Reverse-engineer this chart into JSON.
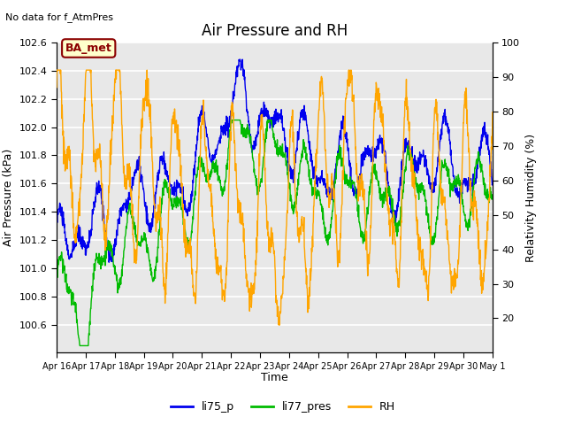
{
  "title": "Air Pressure and RH",
  "no_data_text": "No data for f_AtmPres",
  "ba_met_label": "BA_met",
  "ylabel_left": "Air Pressure (kPa)",
  "ylabel_right": "Relativity Humidity (%)",
  "xlabel": "Time",
  "ylim_left": [
    100.4,
    102.6
  ],
  "ylim_right": [
    10,
    100
  ],
  "yticks_left": [
    100.6,
    100.8,
    101.0,
    101.2,
    101.4,
    101.6,
    101.8,
    102.0,
    102.2,
    102.4,
    102.6
  ],
  "yticks_right": [
    20,
    30,
    40,
    50,
    60,
    70,
    80,
    90,
    100
  ],
  "background_color": "#ffffff",
  "plot_bg_color": "#e8e8e8",
  "grid_color": "#ffffff",
  "colors": {
    "li75_p": "#0000ee",
    "li77_pres": "#00bb00",
    "RH": "#ffa500"
  },
  "day_labels": [
    "Apr 16",
    "Apr 17",
    "Apr 18",
    "Apr 19",
    "Apr 20",
    "Apr 21",
    "Apr 22",
    "Apr 23",
    "Apr 24",
    "Apr 25",
    "Apr 26",
    "Apr 27",
    "Apr 28",
    "Apr 29",
    "Apr 30",
    "May 1"
  ],
  "legend_entries": [
    "li75_p",
    "li77_pres",
    "RH"
  ]
}
